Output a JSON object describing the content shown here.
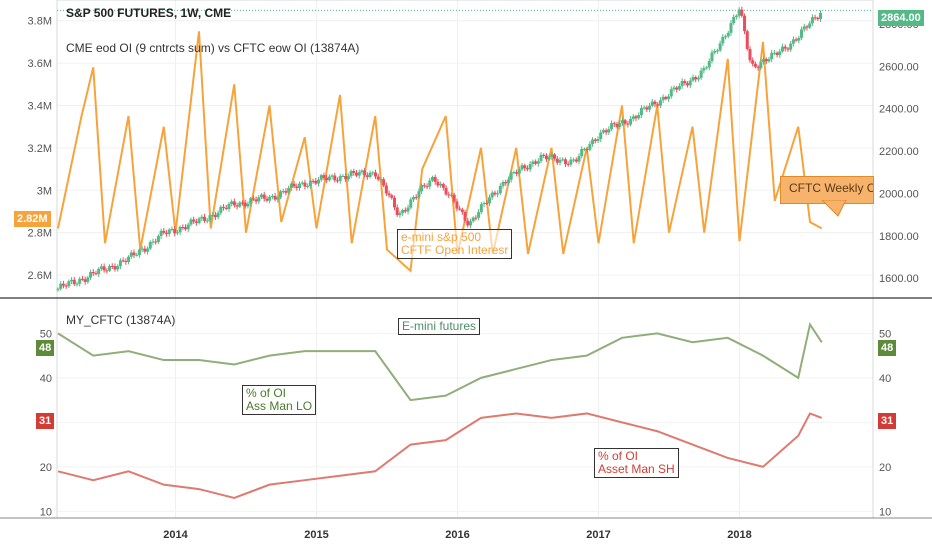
{
  "header": {
    "symbol": "S&P 500 FUTURES, 1W, CME",
    "study": "CME eod OI (9 cntrcts sum) vs CFTC eow OI (13874A)",
    "lower_study": "MY_CFTC (13874A)"
  },
  "annotations": {
    "emini_oi_line1": "e-mini s&p 500",
    "emini_oi_line2": "CFTF Open Interesr",
    "cftc_weekly": "CFTC Weekly C",
    "emini_futures": "E-mini futures",
    "lo_line1": "% of OI",
    "lo_line2": "Ass Man LO",
    "sh_line1": "% of OI",
    "sh_line2": "Asset Man SH"
  },
  "tags": {
    "last_price": "2864.00",
    "oi_value": "2.82M",
    "lo_left": "48",
    "lo_right": "48",
    "sh_left": "31",
    "sh_right": "31"
  },
  "colors": {
    "up": "#53b987",
    "down": "#eb4d5c",
    "oi": "#f7a33c",
    "lo": "#8fae7a",
    "sh": "#de7a70",
    "lo_tag": "#5d8b3a",
    "sh_tag": "#d33c35"
  },
  "chart_data": [
    {
      "type": "candlestick+line",
      "title": "S&P 500 FUTURES, 1W, CME",
      "x_ticks": [
        "2014",
        "2015",
        "2016",
        "2017",
        "2018"
      ],
      "y_left_ticks": [
        "2.6M",
        "2.8M",
        "3M",
        "3.2M",
        "3.4M",
        "3.6M",
        "3.8M"
      ],
      "y_right_ticks": [
        "1600.00",
        "1800.00",
        "2000.00",
        "2200.00",
        "2400.00",
        "2600.00",
        "2800.00"
      ],
      "ylim_price": [
        1535,
        2875
      ],
      "ylim_oi": [
        2.52,
        3.86
      ],
      "price_series": {
        "name": "S&P 500 FUTURES",
        "points": [
          [
            "2013-03",
            1550
          ],
          [
            "2013-06",
            1620
          ],
          [
            "2013-09",
            1690
          ],
          [
            "2013-12",
            1810
          ],
          [
            "2014-03",
            1870
          ],
          [
            "2014-06",
            1950
          ],
          [
            "2014-09",
            1980
          ],
          [
            "2014-12",
            2050
          ],
          [
            "2015-03",
            2080
          ],
          [
            "2015-06",
            2100
          ],
          [
            "2015-08",
            1900
          ],
          [
            "2015-11",
            2080
          ],
          [
            "2016-02",
            1860
          ],
          [
            "2016-05",
            2060
          ],
          [
            "2016-08",
            2170
          ],
          [
            "2016-11",
            2150
          ],
          [
            "2017-01",
            2280
          ],
          [
            "2017-04",
            2360
          ],
          [
            "2017-07",
            2470
          ],
          [
            "2017-10",
            2580
          ],
          [
            "2018-01",
            2870
          ],
          [
            "2018-02",
            2600
          ],
          [
            "2018-04",
            2650
          ],
          [
            "2018-06",
            2740
          ],
          [
            "2018-08",
            2864
          ]
        ]
      },
      "oi_series": {
        "name": "CME eod OI (9 cntrcts sum)",
        "points": [
          [
            "2013-03",
            2.82
          ],
          [
            "2013-05",
            3.35
          ],
          [
            "2013-06",
            3.58
          ],
          [
            "2013-07",
            2.75
          ],
          [
            "2013-09",
            3.35
          ],
          [
            "2013-10",
            2.72
          ],
          [
            "2013-12",
            3.3
          ],
          [
            "2014-01",
            2.8
          ],
          [
            "2014-03",
            3.75
          ],
          [
            "2014-04",
            2.82
          ],
          [
            "2014-06",
            3.5
          ],
          [
            "2014-07",
            2.8
          ],
          [
            "2014-09",
            3.4
          ],
          [
            "2014-10",
            2.85
          ],
          [
            "2014-12",
            3.25
          ],
          [
            "2015-01",
            2.82
          ],
          [
            "2015-03",
            3.45
          ],
          [
            "2015-04",
            2.75
          ],
          [
            "2015-06",
            3.35
          ],
          [
            "2015-07",
            2.72
          ],
          [
            "2015-09",
            2.62
          ],
          [
            "2015-10",
            3.1
          ],
          [
            "2015-12",
            3.35
          ],
          [
            "2016-01",
            2.7
          ],
          [
            "2016-03",
            3.2
          ],
          [
            "2016-04",
            2.7
          ],
          [
            "2016-06",
            3.2
          ],
          [
            "2016-07",
            2.7
          ],
          [
            "2016-09",
            3.2
          ],
          [
            "2016-10",
            2.7
          ],
          [
            "2016-12",
            3.2
          ],
          [
            "2017-01",
            2.75
          ],
          [
            "2017-03",
            3.4
          ],
          [
            "2017-04",
            2.75
          ],
          [
            "2017-06",
            3.4
          ],
          [
            "2017-07",
            2.8
          ],
          [
            "2017-09",
            3.3
          ],
          [
            "2017-10",
            2.8
          ],
          [
            "2017-12",
            3.62
          ],
          [
            "2018-01",
            2.76
          ],
          [
            "2018-03",
            3.7
          ],
          [
            "2018-04",
            2.95
          ],
          [
            "2018-06",
            3.3
          ],
          [
            "2018-07",
            2.85
          ],
          [
            "2018-08",
            2.82
          ]
        ]
      }
    },
    {
      "type": "line",
      "title": "MY_CFTC (13874A)",
      "x_ticks": [
        "2014",
        "2015",
        "2016",
        "2017",
        "2018"
      ],
      "y_ticks": [
        "10",
        "20",
        "30",
        "40",
        "50"
      ],
      "ylim": [
        8.5,
        57.5
      ],
      "series": [
        {
          "name": "% of OI Ass Man LO",
          "points": [
            [
              "2013-03",
              50
            ],
            [
              "2013-06",
              45
            ],
            [
              "2013-09",
              46
            ],
            [
              "2013-12",
              44
            ],
            [
              "2014-03",
              44
            ],
            [
              "2014-06",
              43
            ],
            [
              "2014-09",
              45
            ],
            [
              "2014-12",
              46
            ],
            [
              "2015-03",
              46
            ],
            [
              "2015-06",
              46
            ],
            [
              "2015-09",
              35
            ],
            [
              "2015-12",
              36
            ],
            [
              "2016-03",
              40
            ],
            [
              "2016-06",
              42
            ],
            [
              "2016-09",
              44
            ],
            [
              "2016-12",
              45
            ],
            [
              "2017-03",
              49
            ],
            [
              "2017-06",
              50
            ],
            [
              "2017-09",
              48
            ],
            [
              "2017-12",
              49
            ],
            [
              "2018-03",
              45
            ],
            [
              "2018-06",
              40
            ],
            [
              "2018-07",
              52
            ],
            [
              "2018-08",
              48
            ]
          ]
        },
        {
          "name": "% of OI Asset Man SH",
          "points": [
            [
              "2013-03",
              19
            ],
            [
              "2013-06",
              17
            ],
            [
              "2013-09",
              19
            ],
            [
              "2013-12",
              16
            ],
            [
              "2014-03",
              15
            ],
            [
              "2014-06",
              13
            ],
            [
              "2014-09",
              16
            ],
            [
              "2014-12",
              17
            ],
            [
              "2015-03",
              18
            ],
            [
              "2015-06",
              19
            ],
            [
              "2015-09",
              25
            ],
            [
              "2015-12",
              26
            ],
            [
              "2016-03",
              31
            ],
            [
              "2016-06",
              32
            ],
            [
              "2016-09",
              31
            ],
            [
              "2016-12",
              32
            ],
            [
              "2017-03",
              30
            ],
            [
              "2017-06",
              28
            ],
            [
              "2017-09",
              25
            ],
            [
              "2017-12",
              22
            ],
            [
              "2018-03",
              20
            ],
            [
              "2018-06",
              27
            ],
            [
              "2018-07",
              32
            ],
            [
              "2018-08",
              31
            ]
          ]
        }
      ]
    }
  ]
}
